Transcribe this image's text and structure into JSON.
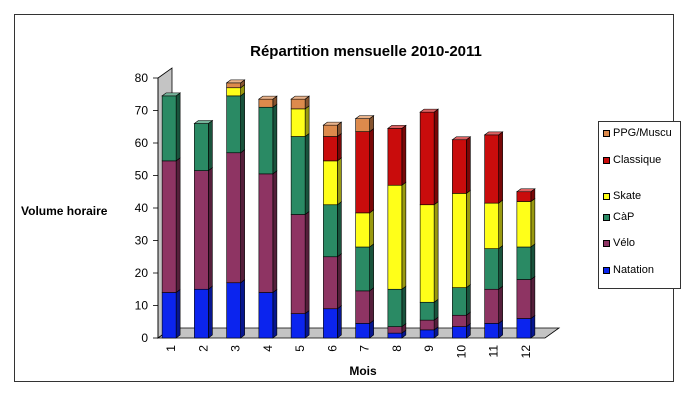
{
  "chart_data": {
    "type": "bar",
    "stacked": true,
    "title": "Répartition mensuelle 2010-2011",
    "xlabel": "Mois",
    "ylabel": "Volume horaire",
    "ylim": [
      0,
      80
    ],
    "yticks": [
      0,
      10,
      20,
      30,
      40,
      50,
      60,
      70,
      80
    ],
    "grid": false,
    "legend_position": "right",
    "categories": [
      "1",
      "2",
      "3",
      "4",
      "5",
      "6",
      "7",
      "8",
      "9",
      "10",
      "11",
      "12"
    ],
    "series": [
      {
        "name": "Natation",
        "color": "#0b24ee",
        "values": [
          14,
          15,
          17,
          14,
          7.5,
          9,
          4.5,
          1.5,
          2.5,
          3.5,
          4.5,
          6
        ]
      },
      {
        "name": "Vélo",
        "color": "#8e3463",
        "values": [
          40.5,
          36.5,
          40,
          36.5,
          30.5,
          16,
          10,
          2,
          3,
          3.5,
          10.5,
          12
        ]
      },
      {
        "name": "CàP",
        "color": "#2a8a64",
        "values": [
          20,
          14.5,
          17.5,
          20.5,
          24,
          16,
          13.5,
          11.5,
          5.5,
          8.5,
          12.5,
          10
        ]
      },
      {
        "name": "Skate",
        "color": "#ffff19",
        "values": [
          0,
          0,
          2.5,
          0,
          8.5,
          13.5,
          10.5,
          32,
          30,
          29,
          14,
          14
        ]
      },
      {
        "name": "Classique",
        "color": "#c90c0c",
        "values": [
          0,
          0,
          0,
          0,
          0,
          7.5,
          25,
          17.5,
          28.5,
          16.5,
          21,
          3
        ]
      },
      {
        "name": "PPG/Muscu",
        "color": "#dd8a4c",
        "values": [
          0,
          0,
          1.5,
          2.5,
          3,
          3.5,
          4,
          0,
          0,
          0,
          0,
          0
        ]
      }
    ]
  }
}
